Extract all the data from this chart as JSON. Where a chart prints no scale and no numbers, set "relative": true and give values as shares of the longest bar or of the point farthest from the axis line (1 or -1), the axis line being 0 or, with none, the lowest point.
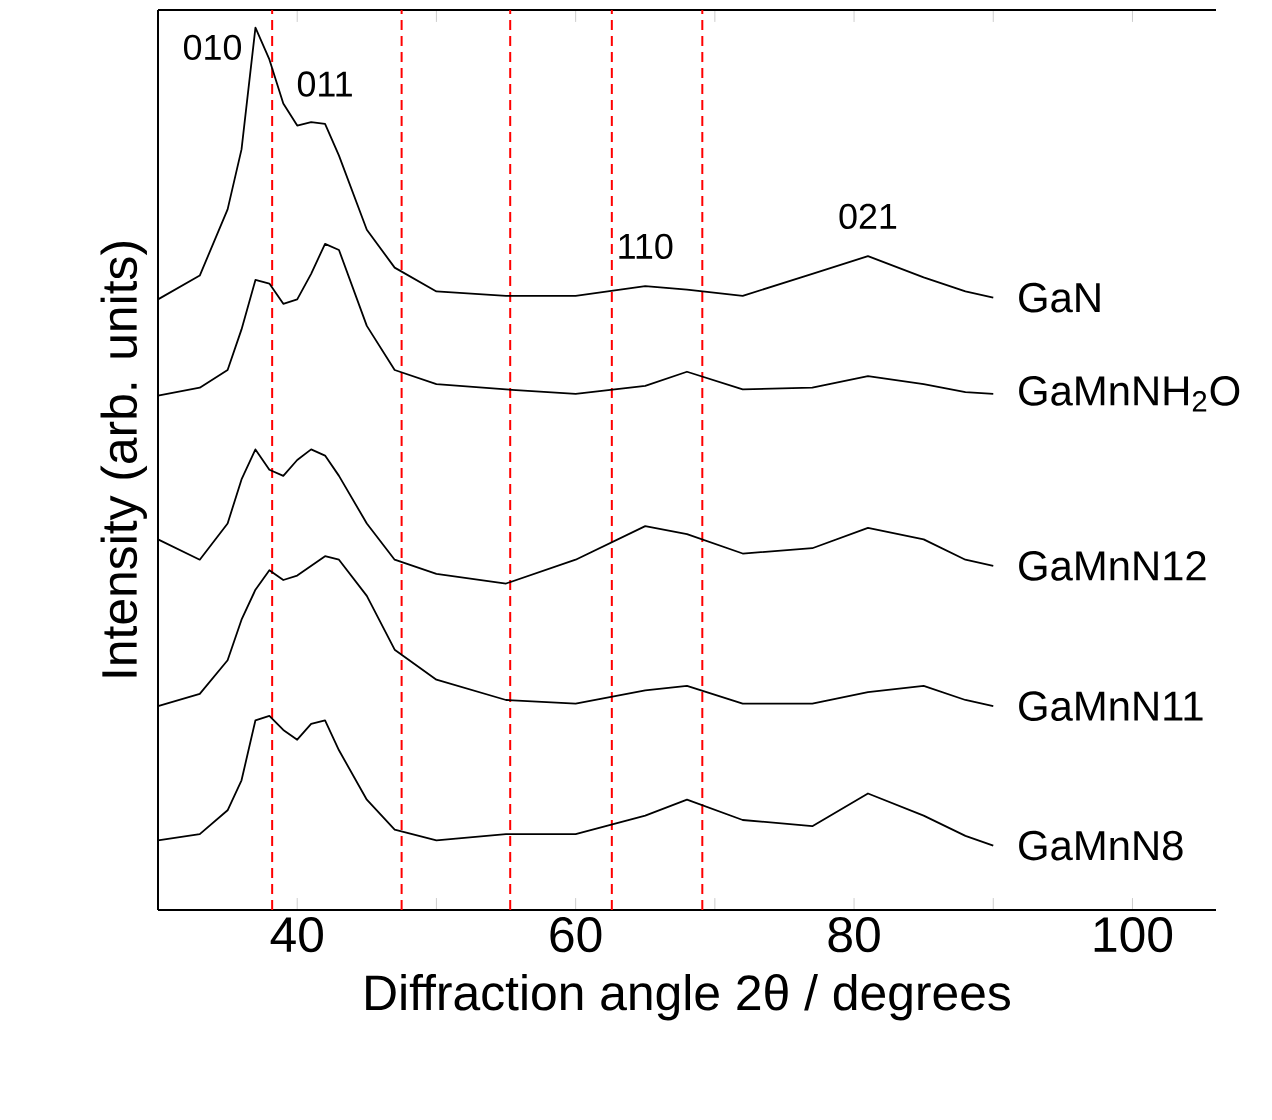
{
  "chart_data": {
    "type": "line",
    "relative": true,
    "xlabel": "Diffraction angle 2θ  / degrees",
    "ylabel": "Intensity (arb. units)",
    "x": [
      30,
      33,
      35,
      36,
      37,
      38,
      39,
      40,
      41,
      42,
      43,
      45,
      47,
      50,
      55,
      60,
      65,
      68,
      72,
      77,
      81,
      85,
      88,
      90
    ],
    "xlim": [
      30,
      106
    ],
    "xticks": [
      40,
      {
        "value": 50,
        "label": null
      },
      60,
      {
        "value": 70,
        "label": null
      },
      80,
      {
        "value": 90,
        "label": null
      },
      100
    ],
    "series": [
      {
        "name": "GaN",
        "color": "#000000",
        "values": [
          0.692,
          0.719,
          0.794,
          0.862,
          1.0,
          0.964,
          0.914,
          0.889,
          0.893,
          0.891,
          0.855,
          0.771,
          0.728,
          0.701,
          0.696,
          0.696,
          0.707,
          0.703,
          0.696,
          0.721,
          0.741,
          0.717,
          0.701,
          0.694
        ]
      },
      {
        "name": "GaMnNH$_{2}$O",
        "color": "#000000",
        "values": [
          0.583,
          0.592,
          0.612,
          0.658,
          0.714,
          0.71,
          0.687,
          0.692,
          0.721,
          0.755,
          0.748,
          0.662,
          0.612,
          0.596,
          0.59,
          0.585,
          0.594,
          0.61,
          0.59,
          0.592,
          0.605,
          0.596,
          0.587,
          0.585
        ]
      },
      {
        "name": "GaMnN12",
        "color": "#000000",
        "values": [
          0.42,
          0.397,
          0.438,
          0.488,
          0.522,
          0.499,
          0.492,
          0.51,
          0.522,
          0.515,
          0.492,
          0.438,
          0.397,
          0.381,
          0.37,
          0.397,
          0.435,
          0.426,
          0.404,
          0.41,
          0.433,
          0.42,
          0.397,
          0.39
        ]
      },
      {
        "name": "GaMnN11",
        "color": "#000000",
        "values": [
          0.231,
          0.245,
          0.283,
          0.329,
          0.363,
          0.385,
          0.374,
          0.379,
          0.39,
          0.401,
          0.397,
          0.356,
          0.295,
          0.261,
          0.238,
          0.234,
          0.249,
          0.254,
          0.234,
          0.234,
          0.247,
          0.254,
          0.238,
          0.231
        ]
      },
      {
        "name": "GaMnN8",
        "color": "#000000",
        "values": [
          0.079,
          0.086,
          0.113,
          0.147,
          0.215,
          0.22,
          0.204,
          0.193,
          0.211,
          0.215,
          0.181,
          0.125,
          0.091,
          0.079,
          0.086,
          0.086,
          0.107,
          0.125,
          0.102,
          0.095,
          0.132,
          0.107,
          0.084,
          0.073
        ]
      }
    ],
    "ref_lines": [
      {
        "axis": "x",
        "value": 38.2,
        "color": "#ff0000",
        "line_style": "dashed"
      },
      {
        "axis": "x",
        "value": 47.5,
        "color": "#ff0000",
        "line_style": "dashed"
      },
      {
        "axis": "x",
        "value": 55.3,
        "color": "#ff0000",
        "line_style": "dashed"
      },
      {
        "axis": "x",
        "value": 62.6,
        "color": "#ff0000",
        "line_style": "dashed"
      },
      {
        "axis": "x",
        "value": 69.1,
        "color": "#ff0000",
        "line_style": "dashed"
      }
    ],
    "annotations": [
      {
        "text": "010",
        "x": 37,
        "y": 1.0
      },
      {
        "text": "011",
        "x": 42,
        "y": 0.891
      },
      {
        "text": "110",
        "x": 65,
        "y": 0.707
      },
      {
        "text": "021",
        "x": 81,
        "y": 0.741
      }
    ]
  }
}
